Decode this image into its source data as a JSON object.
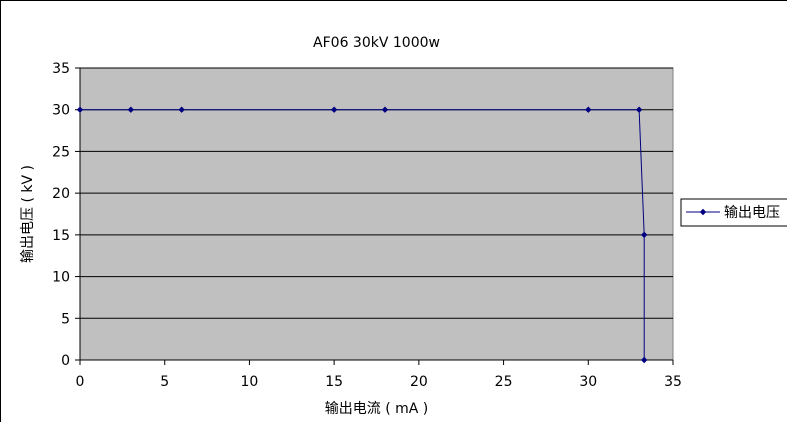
{
  "chart_data": {
    "type": "line",
    "title": "AF06 30kV 1000w",
    "xlabel": "输出电流 ( mA )",
    "ylabel": "输出电压 ( kV )",
    "xlim": [
      0,
      35
    ],
    "ylim": [
      0,
      35
    ],
    "xticks": [
      0,
      5,
      10,
      15,
      20,
      25,
      30,
      35
    ],
    "yticks": [
      0,
      5,
      10,
      15,
      20,
      25,
      30,
      35
    ],
    "grid": "horizontal",
    "legend_position": "right",
    "plot_background": "#c0c0c0",
    "series": [
      {
        "name": "输出电压",
        "color": "#000080",
        "marker": "diamond",
        "x": [
          0,
          3,
          6,
          15,
          18,
          30,
          33,
          33.3,
          33.3
        ],
        "y": [
          30,
          30,
          30,
          30,
          30,
          30,
          30,
          15,
          0
        ]
      }
    ]
  }
}
